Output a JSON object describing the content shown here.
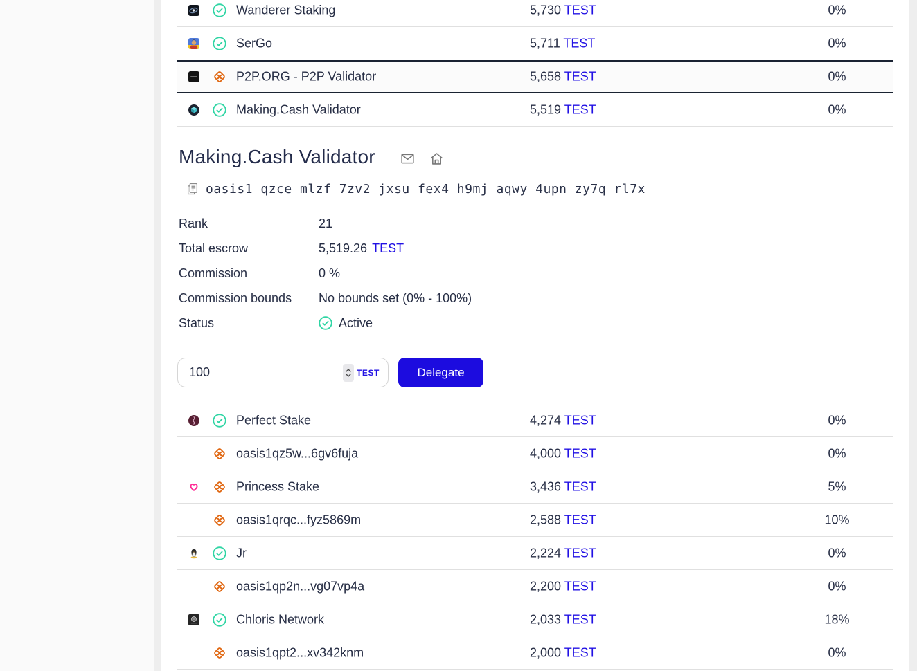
{
  "app": {
    "token": "TEST",
    "colors": {
      "accent_blue": "#2211e4",
      "button_blue": "#1c0cdf",
      "active_green": "#2fd5a4",
      "inactive_orange": "#e0650e",
      "highlight_border": "#1a2332"
    }
  },
  "top_validators": {
    "rows": [
      {
        "name": "Wanderer Staking",
        "avatar": "wanderer",
        "status": "active",
        "escrow": "5,730",
        "token": "TEST",
        "fee": "0%",
        "highlighted": false
      },
      {
        "name": "SerGo",
        "avatar": "sergo",
        "status": "active",
        "escrow": "5,711",
        "token": "TEST",
        "fee": "0%",
        "highlighted": false
      },
      {
        "name": "P2P.ORG - P2P Validator",
        "avatar": "p2p",
        "status": "inactive",
        "escrow": "5,658",
        "token": "TEST",
        "fee": "0%",
        "highlighted": true
      },
      {
        "name": "Making.Cash Validator",
        "avatar": "makingcash",
        "status": "active",
        "escrow": "5,519",
        "token": "TEST",
        "fee": "0%",
        "highlighted": false
      }
    ]
  },
  "validator_details": {
    "title": "Making.Cash Validator",
    "address": "oasis1 qzce mlzf 7zv2 jxsu fex4 h9mj aqwy 4upn zy7q rl7x",
    "fields": [
      {
        "label": "Rank",
        "value": "21"
      },
      {
        "label": "Total escrow",
        "value": "5,519.26",
        "value_suffix": "TEST"
      },
      {
        "label": "Commission",
        "value": "0 %"
      },
      {
        "label": "Commission bounds",
        "value": "No bounds set (0% - 100%)"
      },
      {
        "label": "Status",
        "value": "Active",
        "value_icon": "active"
      }
    ],
    "delegate_form": {
      "amount_value": "100",
      "currency_label": "TEST",
      "button_label": "Delegate"
    }
  },
  "delegation_validators": {
    "rows": [
      {
        "name": "Perfect Stake",
        "avatar": "perfect",
        "status": "active",
        "escrow": "4,274",
        "token": "TEST",
        "fee": "0%",
        "highlighted": false
      },
      {
        "name": "oasis1qz5w...6gv6fuja",
        "avatar": null,
        "status": "inactive",
        "escrow": "4,000",
        "token": "TEST",
        "fee": "0%",
        "highlighted": false
      },
      {
        "name": "Princess Stake",
        "avatar": "princess",
        "status": "inactive",
        "escrow": "3,436",
        "token": "TEST",
        "fee": "5%",
        "highlighted": false
      },
      {
        "name": "oasis1qrqc...fyz5869m",
        "avatar": null,
        "status": "inactive",
        "escrow": "2,588",
        "token": "TEST",
        "fee": "10%",
        "highlighted": false
      },
      {
        "name": "Jr",
        "avatar": "jr",
        "status": "active",
        "escrow": "2,224",
        "token": "TEST",
        "fee": "0%",
        "highlighted": false
      },
      {
        "name": "oasis1qp2n...vg07vp4a",
        "avatar": null,
        "status": "inactive",
        "escrow": "2,200",
        "token": "TEST",
        "fee": "0%",
        "highlighted": false
      },
      {
        "name": "Chloris Network",
        "avatar": "chloris",
        "status": "active",
        "escrow": "2,033",
        "token": "TEST",
        "fee": "18%",
        "highlighted": false
      },
      {
        "name": "oasis1qpt2...xv342knm",
        "avatar": null,
        "status": "inactive",
        "escrow": "2,000",
        "token": "TEST",
        "fee": "0%",
        "highlighted": false
      }
    ]
  }
}
